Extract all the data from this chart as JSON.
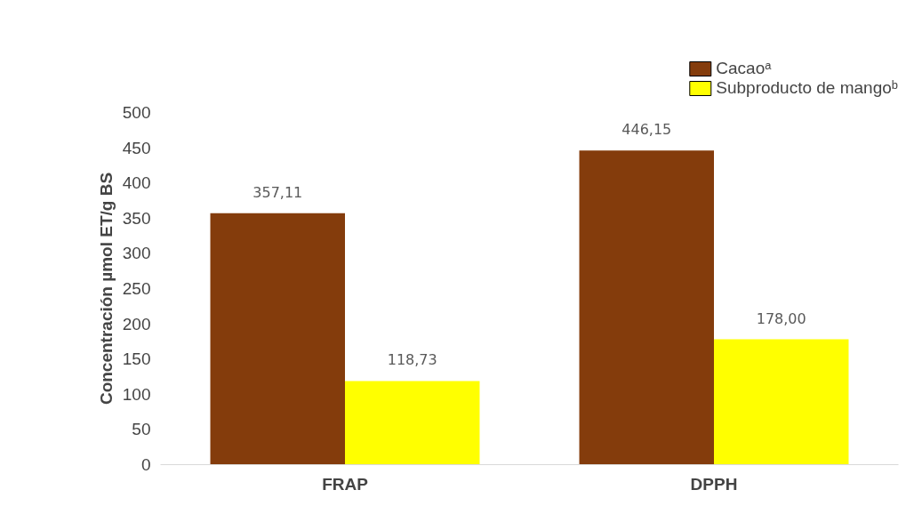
{
  "chart_data": {
    "type": "bar",
    "ylabel": "Concentración µmol ET/g BS",
    "categories": [
      "FRAP",
      "DPPH"
    ],
    "series": [
      {
        "name": "Cacaoᵃ",
        "color": "#843c0c",
        "values": [
          357.11,
          446.15
        ],
        "value_labels": [
          "357,11",
          "446,15"
        ]
      },
      {
        "name": "Subproducto de mangoᵇ",
        "color": "#ffff00",
        "values": [
          118.73,
          178.0
        ],
        "value_labels": [
          "118,73",
          "178,00"
        ]
      }
    ],
    "ylim": [
      0,
      500
    ],
    "yticks": [
      0,
      50,
      100,
      150,
      200,
      250,
      300,
      350,
      400,
      450,
      500
    ],
    "grid": false,
    "legend": "top right"
  }
}
